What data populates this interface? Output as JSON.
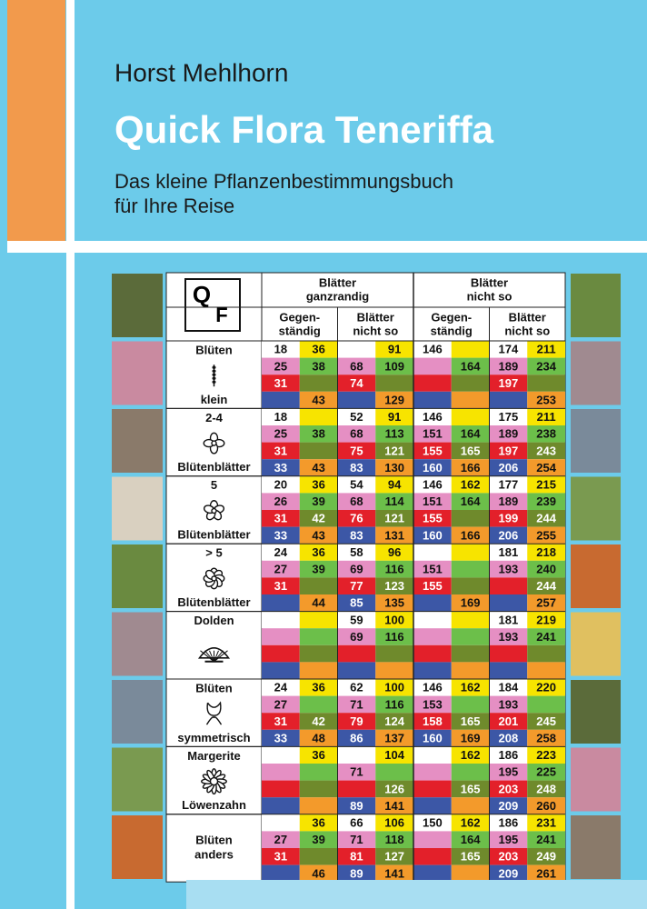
{
  "cover": {
    "author": "Horst Mehlhorn",
    "title": "Quick Flora Teneriffa",
    "subtitle": [
      "Das kleine Pflanzenbestimmungsbuch",
      "für Ihre Reise"
    ]
  },
  "table": {
    "logo": [
      "Q",
      "F"
    ],
    "groups": [
      {
        "lines": [
          "Blätter",
          "ganzrandig"
        ],
        "sub": [
          [
            "Gegen-",
            "ständig"
          ],
          [
            "Blätter",
            "nicht so"
          ]
        ]
      },
      {
        "lines": [
          "Blätter",
          "nicht so"
        ],
        "sub": [
          [
            "Gegen-",
            "ständig"
          ],
          [
            "Blätter",
            "nicht so"
          ]
        ]
      }
    ],
    "sections": [
      {
        "label": [
          "Blüten",
          "klein"
        ],
        "rows": [
          [
            18,
            36,
            null,
            91,
            146,
            null,
            174,
            211
          ],
          [
            25,
            38,
            68,
            109,
            null,
            164,
            189,
            234
          ],
          [
            31,
            null,
            74,
            null,
            null,
            null,
            197,
            null
          ],
          [
            null,
            43,
            null,
            129,
            null,
            null,
            null,
            253
          ]
        ]
      },
      {
        "label": [
          "2-4",
          "Blütenblätter"
        ],
        "rows": [
          [
            18,
            null,
            52,
            91,
            146,
            null,
            175,
            211
          ],
          [
            25,
            38,
            68,
            113,
            151,
            164,
            189,
            238
          ],
          [
            31,
            null,
            75,
            121,
            155,
            165,
            197,
            243
          ],
          [
            33,
            43,
            83,
            130,
            160,
            166,
            206,
            254
          ]
        ]
      },
      {
        "label": [
          "5",
          "Blütenblätter"
        ],
        "rows": [
          [
            20,
            36,
            54,
            94,
            146,
            162,
            177,
            215
          ],
          [
            26,
            39,
            68,
            114,
            151,
            164,
            189,
            239
          ],
          [
            31,
            42,
            76,
            121,
            155,
            null,
            199,
            244
          ],
          [
            33,
            43,
            83,
            131,
            160,
            166,
            206,
            255
          ]
        ]
      },
      {
        "label": [
          "> 5",
          "Blütenblätter"
        ],
        "rows": [
          [
            24,
            36,
            58,
            96,
            null,
            null,
            181,
            218
          ],
          [
            27,
            39,
            69,
            116,
            151,
            null,
            193,
            240
          ],
          [
            31,
            null,
            77,
            123,
            155,
            null,
            null,
            244
          ],
          [
            null,
            44,
            85,
            135,
            null,
            169,
            null,
            257
          ]
        ]
      },
      {
        "label": [
          "Dolden"
        ],
        "rows": [
          [
            null,
            null,
            59,
            100,
            null,
            null,
            181,
            219
          ],
          [
            null,
            null,
            69,
            116,
            null,
            null,
            193,
            241
          ],
          [
            null,
            null,
            null,
            null,
            null,
            null,
            null,
            null
          ],
          [
            null,
            null,
            null,
            null,
            null,
            null,
            null,
            null
          ]
        ]
      },
      {
        "label": [
          "Blüten",
          "symmetrisch"
        ],
        "rows": [
          [
            24,
            36,
            62,
            100,
            146,
            162,
            184,
            220
          ],
          [
            27,
            null,
            71,
            116,
            153,
            null,
            193,
            null
          ],
          [
            31,
            42,
            79,
            124,
            158,
            165,
            201,
            245
          ],
          [
            33,
            48,
            86,
            137,
            160,
            169,
            208,
            258
          ]
        ]
      },
      {
        "label": [
          "Margerite",
          "Löwenzahn"
        ],
        "rows": [
          [
            null,
            36,
            null,
            104,
            null,
            162,
            186,
            223
          ],
          [
            null,
            null,
            71,
            null,
            null,
            null,
            195,
            225
          ],
          [
            null,
            null,
            null,
            126,
            null,
            165,
            203,
            248
          ],
          [
            null,
            null,
            89,
            141,
            null,
            null,
            209,
            260
          ]
        ]
      },
      {
        "label": [
          "Blüten",
          "anders"
        ],
        "rows": [
          [
            null,
            36,
            66,
            106,
            150,
            162,
            186,
            231
          ],
          [
            27,
            39,
            71,
            118,
            null,
            164,
            195,
            241
          ],
          [
            31,
            null,
            81,
            127,
            null,
            165,
            203,
            249
          ],
          [
            null,
            46,
            89,
            141,
            null,
            null,
            209,
            261
          ]
        ]
      }
    ]
  }
}
